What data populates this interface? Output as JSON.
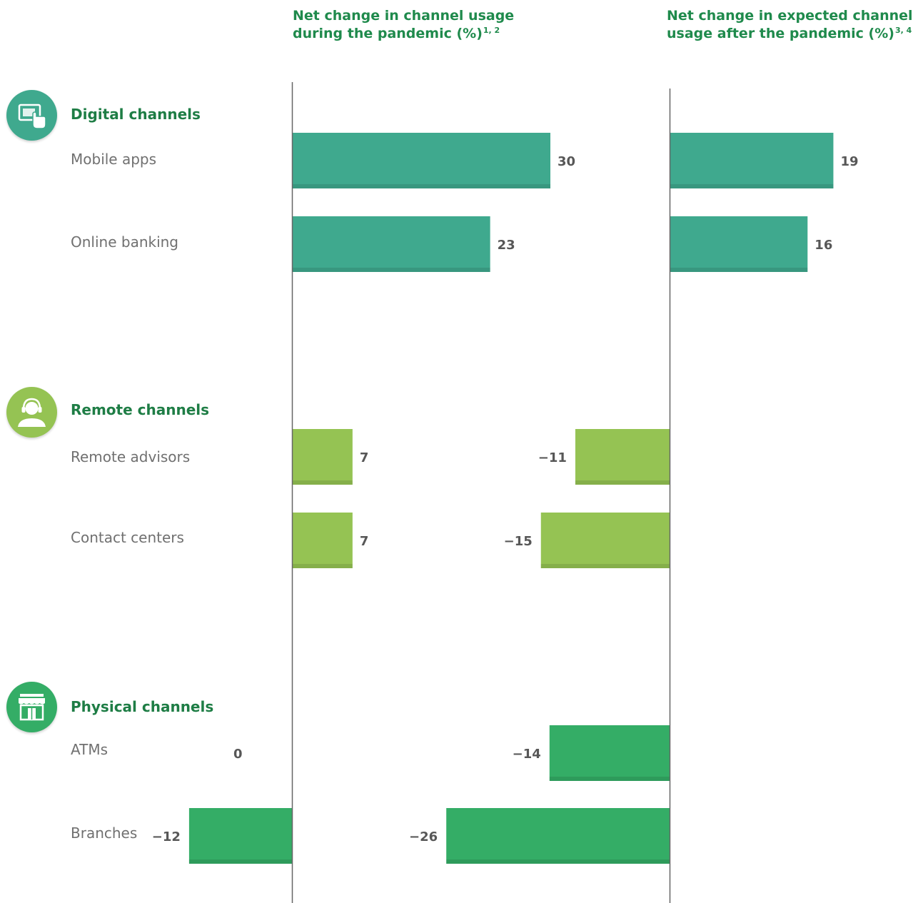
{
  "chart_data": {
    "type": "bar",
    "orientation": "horizontal",
    "panels": [
      {
        "title": "Net change in channel usage during the pandemic (%)",
        "title_line1": "Net change in channel usage",
        "title_line2": "during the pandemic (%)",
        "footnote": "1, 2",
        "values": [
          30,
          23,
          7,
          7,
          0,
          -12
        ],
        "value_labels": [
          "30",
          "23",
          "7",
          "7",
          "0",
          "−12"
        ]
      },
      {
        "title": "Net change in expected channel usage after the pandemic (%)",
        "title_line1": "Net change in expected channel",
        "title_line2": "usage after the pandemic (%)",
        "footnote": "3, 4",
        "values": [
          19,
          16,
          -11,
          -15,
          -14,
          -26
        ],
        "value_labels": [
          "19",
          "16",
          "−11",
          "−15",
          "−14",
          "−26"
        ]
      }
    ],
    "groups": [
      {
        "name": "Digital channels",
        "icon": "touchscreen-icon",
        "color": "#3fa98e",
        "categories": [
          "Mobile apps",
          "Online banking"
        ]
      },
      {
        "name": "Remote channels",
        "icon": "headset-agent-icon",
        "color": "#95c353",
        "categories": [
          "Remote advisors",
          "Contact centers"
        ]
      },
      {
        "name": "Physical channels",
        "icon": "storefront-icon",
        "color": "#34ad66",
        "categories": [
          "ATMs",
          "Branches"
        ]
      }
    ]
  }
}
